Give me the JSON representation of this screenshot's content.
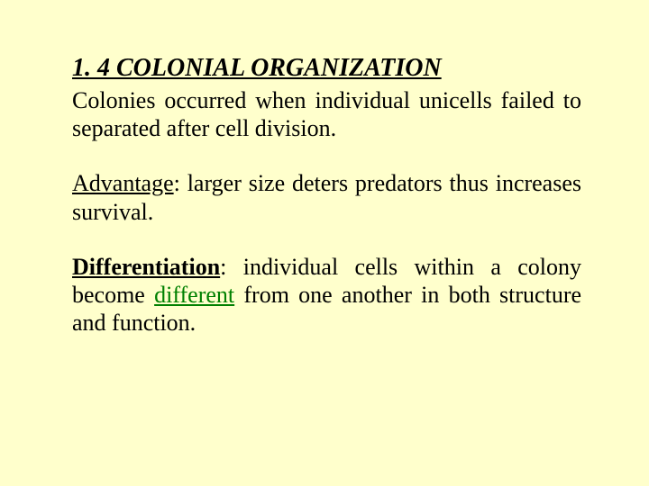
{
  "slide": {
    "background_color": "#ffffcc",
    "text_color": "#000000",
    "accent_color": "#008000",
    "font_family": "Times New Roman",
    "heading": {
      "text": "1. 4 COLONIAL ORGANIZATION",
      "fontsize": 28,
      "italic": true,
      "bold": true,
      "underline": true
    },
    "paragraphs": [
      {
        "fontsize": 26,
        "justify": true,
        "keyword": null,
        "text": "Colonies occurred when individual unicells failed to separated after cell division."
      },
      {
        "fontsize": 26,
        "justify": true,
        "keyword": "Advantage",
        "text": ": larger size deters predators thus increases survival."
      },
      {
        "fontsize": 26,
        "justify": true,
        "keyword": "Differentiation",
        "text": ": individual cells within a colony become ",
        "green_word": "different",
        "text_after": " from one another in both structure and function."
      }
    ]
  }
}
